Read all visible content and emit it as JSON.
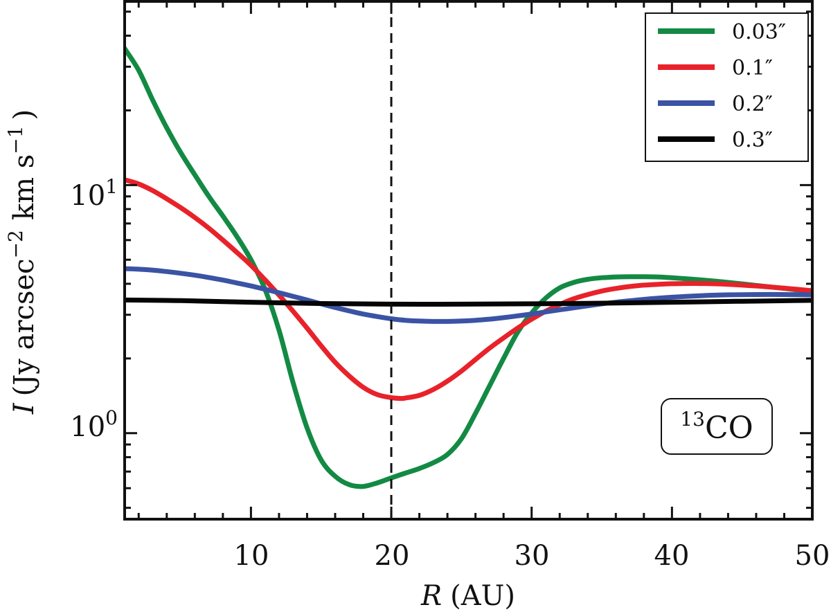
{
  "chart_data": {
    "type": "line",
    "xlabel_var": "R",
    "xlabel_unit": "(AU)",
    "ylabel_var": "I",
    "ylabel_unit": "(Jy arcsec",
    "ylabel_exp1": "−2",
    "ylabel_mid": "km s",
    "ylabel_exp2": "−1",
    "ylabel_close": ")",
    "xlim": [
      1,
      50
    ],
    "ylim": [
      0.45,
      55
    ],
    "yscale": "log",
    "x_ticks": [
      10,
      20,
      30,
      40,
      50
    ],
    "x_tick_labels": [
      "10",
      "20",
      "30",
      "40",
      "50"
    ],
    "y_major_ticks": [
      1,
      10
    ],
    "y_tick_base": "10",
    "y_tick_exps": [
      "0",
      "1"
    ],
    "vline_x": 20,
    "vline_style": "dashed",
    "legend_position": "top-right",
    "annotation": {
      "sup": "13",
      "text": "CO"
    },
    "series": [
      {
        "name": "0.03″",
        "color": "#138a43",
        "x": [
          1,
          2,
          3,
          4,
          5,
          6,
          7,
          8,
          9,
          10,
          11,
          12,
          13,
          14,
          15,
          16,
          17,
          18,
          19,
          20,
          21,
          22,
          23,
          24,
          25,
          26,
          27,
          28,
          29,
          30,
          31,
          32,
          33,
          34,
          35,
          36,
          37,
          38,
          39,
          40,
          42,
          44,
          46,
          48,
          50
        ],
        "y": [
          35.5,
          29,
          22,
          17,
          13.5,
          11,
          9,
          7.5,
          6.2,
          5.0,
          3.8,
          2.6,
          1.6,
          1.05,
          0.78,
          0.67,
          0.62,
          0.61,
          0.63,
          0.66,
          0.69,
          0.72,
          0.76,
          0.82,
          0.95,
          1.2,
          1.55,
          2.0,
          2.55,
          3.05,
          3.5,
          3.85,
          4.05,
          4.17,
          4.23,
          4.26,
          4.27,
          4.27,
          4.26,
          4.23,
          4.15,
          4.05,
          3.94,
          3.83,
          3.72
        ]
      },
      {
        "name": "0.1″",
        "color": "#e8222a",
        "x": [
          1,
          2,
          3,
          4,
          5,
          6,
          7,
          8,
          9,
          10,
          11,
          12,
          13,
          14,
          15,
          16,
          17,
          18,
          19,
          20,
          20.7,
          21,
          22,
          23,
          24,
          25,
          26,
          27,
          28,
          29,
          30,
          31,
          32,
          33,
          34,
          35,
          36,
          37,
          38,
          39,
          40,
          42,
          44,
          46,
          48,
          50
        ],
        "y": [
          10.5,
          10.1,
          9.5,
          8.8,
          8.1,
          7.4,
          6.7,
          6.0,
          5.35,
          4.75,
          4.15,
          3.6,
          3.1,
          2.65,
          2.25,
          1.93,
          1.7,
          1.53,
          1.43,
          1.39,
          1.38,
          1.385,
          1.42,
          1.5,
          1.62,
          1.78,
          1.98,
          2.2,
          2.42,
          2.65,
          2.88,
          3.1,
          3.3,
          3.48,
          3.62,
          3.74,
          3.83,
          3.9,
          3.95,
          3.98,
          4.0,
          4.01,
          3.98,
          3.92,
          3.84,
          3.75
        ]
      },
      {
        "name": "0.2″",
        "color": "#3b53a4",
        "x": [
          1,
          2,
          3,
          4,
          5,
          6,
          7,
          8,
          9,
          10,
          11,
          12,
          13,
          14,
          15,
          16,
          17,
          18,
          19,
          20,
          21,
          22,
          23,
          24,
          25,
          26,
          27,
          28,
          29,
          30,
          31,
          32,
          33,
          34,
          35,
          36,
          38,
          40,
          42,
          44,
          46,
          48,
          50
        ],
        "y": [
          4.6,
          4.58,
          4.54,
          4.48,
          4.41,
          4.33,
          4.24,
          4.14,
          4.03,
          3.92,
          3.8,
          3.68,
          3.56,
          3.44,
          3.32,
          3.21,
          3.11,
          3.02,
          2.95,
          2.89,
          2.85,
          2.83,
          2.82,
          2.82,
          2.83,
          2.85,
          2.88,
          2.92,
          2.97,
          3.02,
          3.08,
          3.14,
          3.2,
          3.26,
          3.32,
          3.37,
          3.46,
          3.53,
          3.58,
          3.61,
          3.62,
          3.62,
          3.61
        ]
      },
      {
        "name": "0.3″",
        "color": "#050505",
        "x": [
          1,
          5,
          10,
          15,
          20,
          25,
          30,
          35,
          40,
          45,
          50
        ],
        "y": [
          3.44,
          3.42,
          3.37,
          3.33,
          3.31,
          3.31,
          3.32,
          3.34,
          3.37,
          3.4,
          3.43
        ]
      }
    ]
  }
}
